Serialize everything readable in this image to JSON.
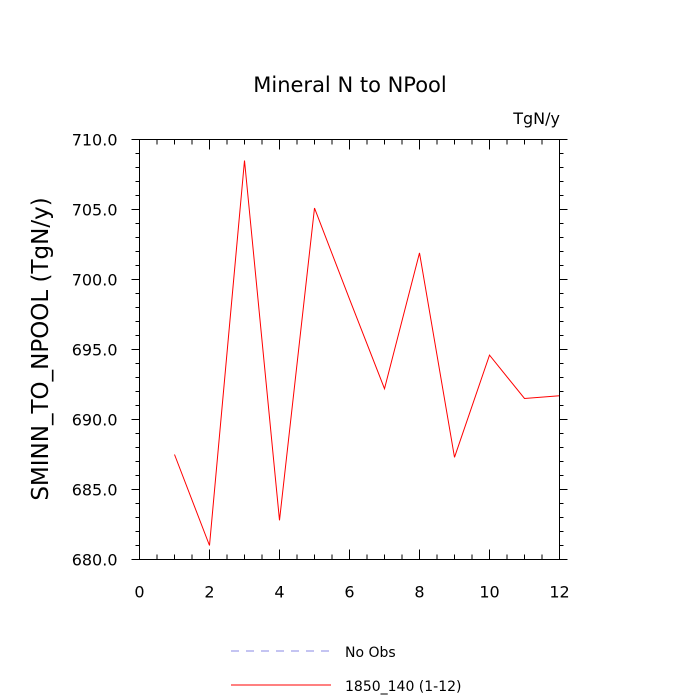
{
  "chart_data": {
    "type": "line",
    "title": "Mineral N to NPool",
    "units_label": "TgN/y",
    "xlabel": "",
    "ylabel": "SMINN_TO_NPOOL  (TgN/y)",
    "xlim": [
      0,
      12
    ],
    "ylim": [
      680,
      710
    ],
    "x_ticks": [
      0,
      2,
      4,
      6,
      8,
      10,
      12
    ],
    "x_tick_labels": [
      "0",
      "2",
      "4",
      "6",
      "8",
      "10",
      "12"
    ],
    "y_ticks": [
      680,
      685,
      690,
      695,
      700,
      705,
      710
    ],
    "y_tick_labels": [
      "680.0",
      "685.0",
      "690.0",
      "695.0",
      "700.0",
      "705.0",
      "710.0"
    ],
    "grid": false,
    "legend_position": "bottom-center",
    "series": [
      {
        "name": "No Obs",
        "color": "#8a8ae6",
        "style": "dashed",
        "x": [],
        "values": []
      },
      {
        "name": "1850_140 (1-12)",
        "color": "#ff0000",
        "style": "solid",
        "x": [
          1,
          2,
          3,
          4,
          5,
          6,
          7,
          8,
          9,
          10,
          11,
          12
        ],
        "values": [
          687.5,
          681.0,
          708.5,
          682.8,
          705.1,
          698.6,
          692.2,
          701.9,
          687.3,
          694.6,
          691.5,
          691.7
        ]
      }
    ]
  }
}
